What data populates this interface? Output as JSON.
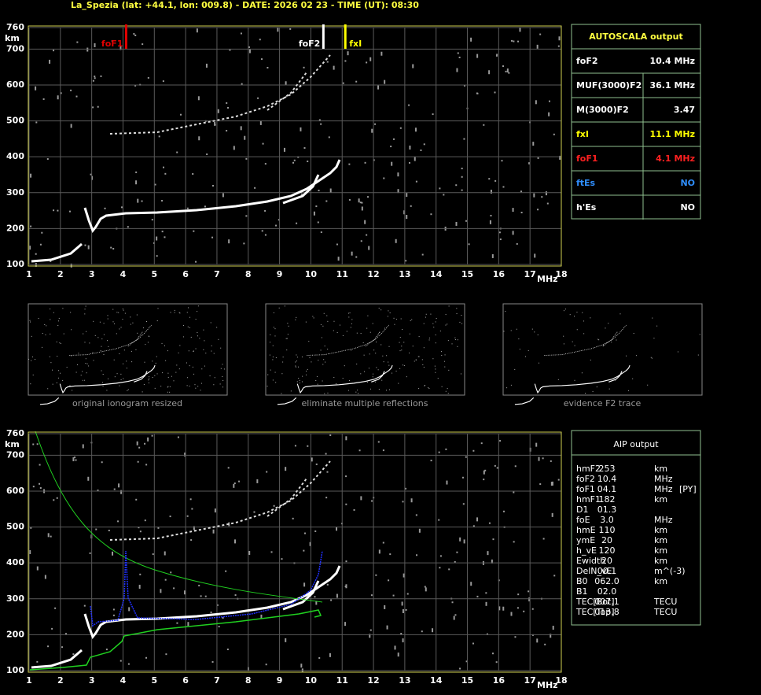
{
  "header": {
    "title": "La_Spezia (lat: +44.1, lon: 009.8) - DATE: 2026 02 23 - TIME (UT): 08:30"
  },
  "axes": {
    "x_unit": "MHz",
    "y_unit": "km",
    "xlim": [
      1,
      18
    ],
    "ylim": [
      100,
      760
    ],
    "xticks": [
      1,
      2,
      3,
      4,
      5,
      6,
      7,
      8,
      9,
      10,
      11,
      12,
      13,
      14,
      15,
      16,
      17,
      18
    ],
    "yticks": [
      100,
      200,
      300,
      400,
      500,
      600,
      700,
      760
    ]
  },
  "markers": [
    {
      "label": "foF1",
      "value": 4.1,
      "color": "#e00000"
    },
    {
      "label": "foF2",
      "value": 10.4,
      "color": "#ffffff"
    },
    {
      "label": "fxI",
      "value": 11.1,
      "color": "#ffff00"
    }
  ],
  "autoscala": {
    "title": "AUTOSCALA output",
    "rows": [
      {
        "label": "foF2",
        "value": "10.4 MHz",
        "color": "#ffffff"
      },
      {
        "label": "MUF(3000)F2",
        "value": "36.1 MHz",
        "color": "#ffffff"
      },
      {
        "label": "M(3000)F2",
        "value": "3.47",
        "color": "#ffffff"
      },
      {
        "label": "fxI",
        "value": "11.1 MHz",
        "color": "#ffff00"
      },
      {
        "label": "foF1",
        "value": "4.1 MHz",
        "color": "#ff2020"
      },
      {
        "label": "ftEs",
        "value": "NO",
        "color": "#2f8fff"
      },
      {
        "label": "h'Es",
        "value": "NO",
        "color": "#ffffff"
      }
    ]
  },
  "thumbnails": [
    "original ionogram resized",
    "eliminate multiple reflections",
    "evidence F2 trace"
  ],
  "aip": {
    "title": "AIP output",
    "rows": [
      [
        "hmF2",
        "253",
        "km"
      ],
      [
        "foF2",
        "10.4",
        "MHz"
      ],
      [
        "foF1",
        "04.1",
        "MHz",
        "[PY]"
      ],
      [
        "hmF1",
        "182",
        "km"
      ],
      [
        "D1",
        "01.3"
      ],
      [
        "foE",
        "3.0",
        "MHz"
      ],
      [
        "hmE",
        "110",
        "km"
      ],
      [
        "ymE",
        "20",
        "km"
      ],
      [
        "h_vE",
        "120",
        "km"
      ],
      [
        "Ewidth",
        "20",
        "km"
      ],
      [
        "DelN_vE",
        "00.1",
        "m^(-3)"
      ],
      [
        "B0",
        "062.0",
        "km"
      ],
      [
        "B1",
        "02.0"
      ],
      [
        "TEC[Bot]",
        "007.1",
        "TECU"
      ],
      [
        "TEC[Top]",
        "013.8",
        "TECU"
      ]
    ]
  }
}
